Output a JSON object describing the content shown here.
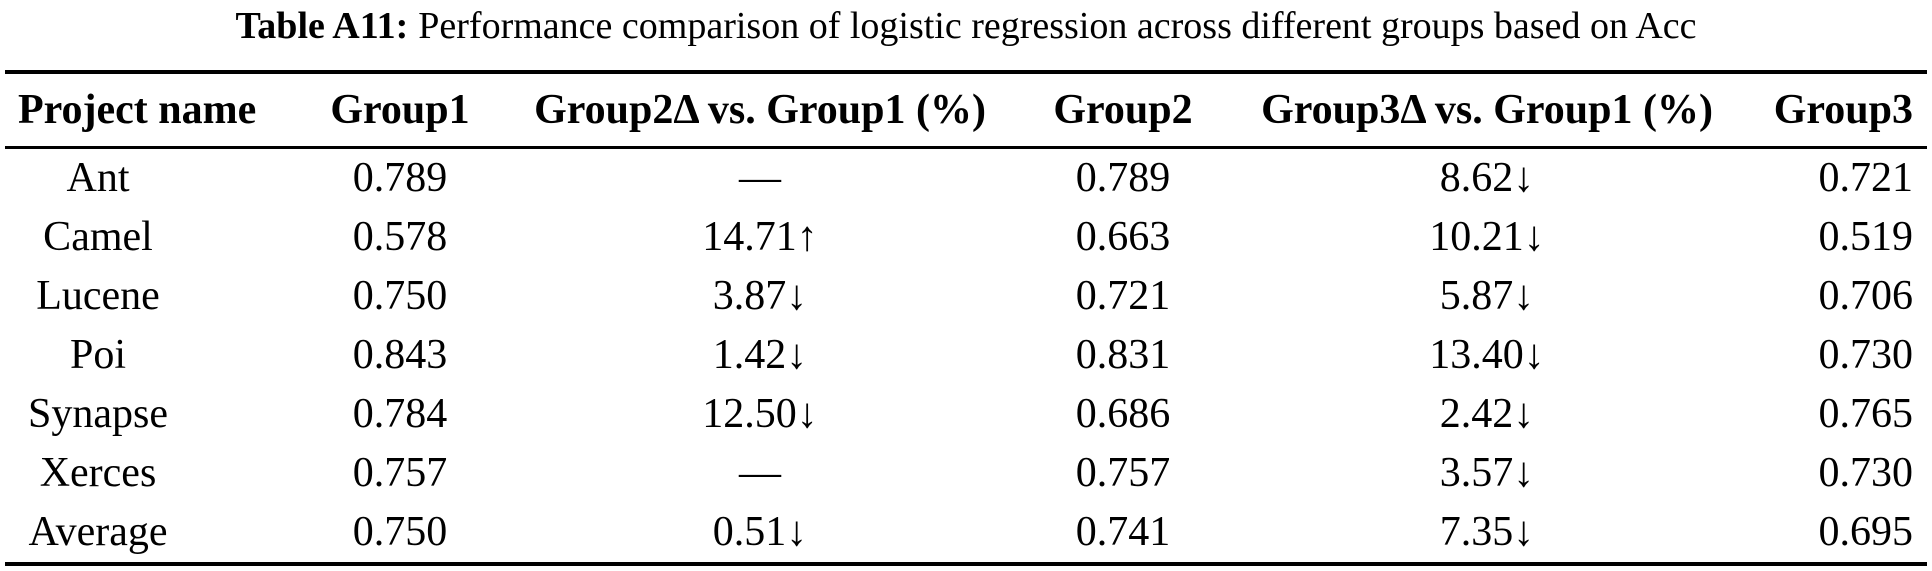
{
  "caption": {
    "label": "Table A11:",
    "text": "Performance comparison of logistic regression across different groups based on Acc"
  },
  "table": {
    "columns": [
      "Project name",
      "Group1",
      "Group2Δ vs. Group1 (%)",
      "Group2",
      "Group3Δ vs. Group1 (%)",
      "Group3"
    ],
    "rows": [
      [
        "Ant",
        "0.789",
        "—",
        "0.789",
        "8.62↓",
        "0.721"
      ],
      [
        "Camel",
        "0.578",
        "14.71↑",
        "0.663",
        "10.21↓",
        "0.519"
      ],
      [
        "Lucene",
        "0.750",
        "3.87↓",
        "0.721",
        "5.87↓",
        "0.706"
      ],
      [
        "Poi",
        "0.843",
        "1.42↓",
        "0.831",
        "13.40↓",
        "0.730"
      ],
      [
        "Synapse",
        "0.784",
        "12.50↓",
        "0.686",
        "2.42↓",
        "0.765"
      ],
      [
        "Xerces",
        "0.757",
        "—",
        "0.757",
        "3.57↓",
        "0.730"
      ],
      [
        "Average",
        "0.750",
        "0.51↓",
        "0.741",
        "7.35↓",
        "0.695"
      ]
    ]
  }
}
